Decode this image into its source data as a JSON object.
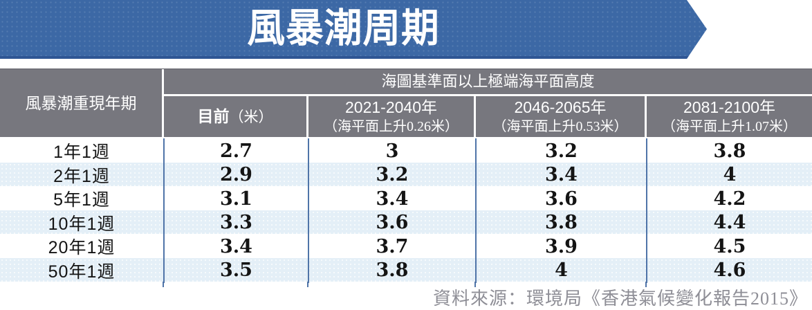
{
  "banner": {
    "title": "風暴潮周期"
  },
  "table": {
    "row_header": "風暴潮重現年期",
    "group_header": "海圖基準面以上極端海平面高度",
    "current_col": {
      "main": "目前",
      "unit": "（米）"
    },
    "year_cols": [
      {
        "title": "2021-2040年",
        "subtitle": "（海平面上升0.26米）"
      },
      {
        "title": "2046-2065年",
        "subtitle": "（海平面上升0.53米）"
      },
      {
        "title": "2081-2100年",
        "subtitle": "（海平面上升1.07米）"
      }
    ],
    "rows": [
      {
        "period": "1年1週",
        "values": [
          "2.7",
          "3",
          "3.2",
          "3.8"
        ]
      },
      {
        "period": "2年1週",
        "values": [
          "2.9",
          "3.2",
          "3.4",
          "4"
        ]
      },
      {
        "period": "5年1週",
        "values": [
          "3.1",
          "3.4",
          "3.6",
          "4.2"
        ]
      },
      {
        "period": "10年1週",
        "values": [
          "3.3",
          "3.6",
          "3.8",
          "4.4"
        ]
      },
      {
        "period": "20年1週",
        "values": [
          "3.4",
          "3.7",
          "3.9",
          "4.5"
        ]
      },
      {
        "period": "50年1週",
        "values": [
          "3.5",
          "3.8",
          "4",
          "4.6"
        ]
      }
    ]
  },
  "footer": {
    "source": "資料來源：環境局《香港氣候變化報告2015》"
  },
  "colors": {
    "banner_blue": "#3c68a5",
    "banner_edge": "#2f5694",
    "header_gray": "#77777e",
    "alt_row_blue": "#e4eff7",
    "divider_blue": "#4f74a8",
    "source_gray": "#8e8e96"
  },
  "chart_data": {
    "type": "table",
    "title": "風暴潮周期",
    "group_header": "海圖基準面以上極端海平面高度",
    "row_header": "風暴潮重現年期",
    "categories": [
      "1年1週",
      "2年1週",
      "5年1週",
      "10年1週",
      "20年1週",
      "50年1週"
    ],
    "series": [
      {
        "name": "目前（米）",
        "values": [
          2.7,
          2.9,
          3.1,
          3.3,
          3.4,
          3.5
        ]
      },
      {
        "name": "2021-2040年（海平面上升0.26米）",
        "values": [
          3.0,
          3.2,
          3.4,
          3.6,
          3.7,
          3.8
        ]
      },
      {
        "name": "2046-2065年（海平面上升0.53米）",
        "values": [
          3.2,
          3.4,
          3.6,
          3.8,
          3.9,
          4.0
        ]
      },
      {
        "name": "2081-2100年（海平面上升1.07米）",
        "values": [
          3.8,
          4.0,
          4.2,
          4.4,
          4.5,
          4.6
        ]
      }
    ],
    "source": "資料來源：環境局《香港氣候變化報告2015》"
  }
}
